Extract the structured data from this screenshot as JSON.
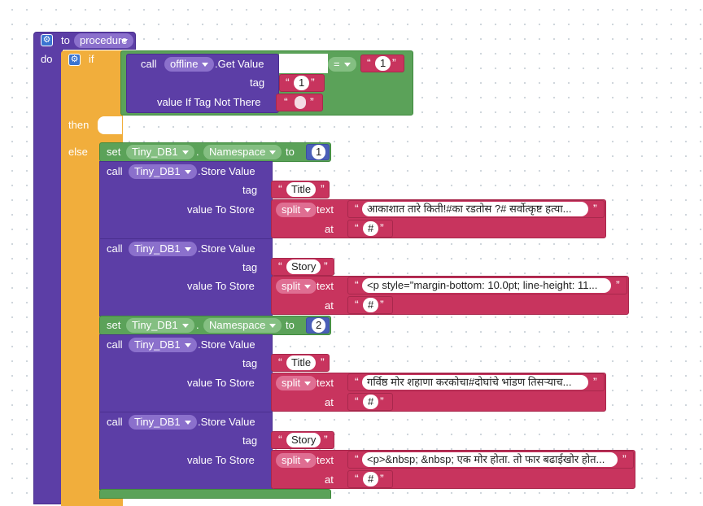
{
  "procedure": {
    "keyword": "to",
    "name": "procedure",
    "do_label": "do"
  },
  "if_block": {
    "if_label": "if",
    "then_label": "then",
    "else_label": "else"
  },
  "condition": {
    "call_label": "call",
    "component": "offline",
    "method": ".Get Value",
    "tag_label": "tag",
    "tag_value": "1",
    "default_label": "value If Tag Not There",
    "default_value": "",
    "compare_op": "=",
    "compare_value": "1"
  },
  "labels": {
    "set": "set",
    "dot": ".",
    "to": "to",
    "call": "call",
    "store_value": ".Store Value",
    "tag": "tag",
    "value_to_store": "value To Store",
    "split": "split",
    "text": "text",
    "at": "at"
  },
  "namespace_prop": "Namespace",
  "db_component": "Tiny_DB1",
  "set1_value": "1",
  "set2_value": "2",
  "stores": [
    {
      "tag": "Title",
      "text": "आकाशात तारे किती!#का रडतोस ?# सर्वोत्कृष्ट हत्या...",
      "at": "#"
    },
    {
      "tag": "Story",
      "text": "<p style=\"margin-bottom: 10.0pt; line-height: 11...",
      "at": "#"
    },
    {
      "tag": "Title",
      "text": "गर्विष्ठ मोर शहाणा करकोचा#दोघांचे भांडण तिसऱ्याच...",
      "at": "#"
    },
    {
      "tag": "Story",
      "text": "<p>&nbsp; &nbsp; एक मोर होता. तो फार बढाईखोर होत...",
      "at": "#"
    }
  ],
  "colors": {
    "procedure": "#5c3ea6",
    "control": "#f1ae3c",
    "tinydb": "#5c3ea6",
    "setter": "#5ba259",
    "text": "#c8345e",
    "math": "#4a5fb8",
    "logic": "#5ba259"
  }
}
